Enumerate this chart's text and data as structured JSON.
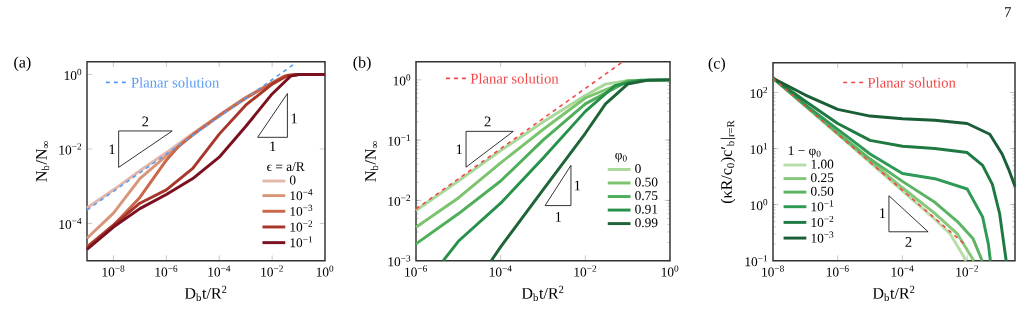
{
  "chart_data": [
    {
      "type": "line",
      "title": "(a)",
      "xlabel": "D$_{b}$t/R$^{2}$",
      "ylabel": "N$_{b}$/N$_{∞}$",
      "legend_title": "ϵ = a/R",
      "log": "xy",
      "legend": "bottom right",
      "marker": "none",
      "xlim": [
        1e-09,
        1
      ],
      "ylim": [
        1e-05,
        2.2
      ],
      "xticks": [
        {
          "value": 1e-08,
          "label": "10$^{−8}$"
        },
        {
          "value": 1e-06,
          "label": "10$^{−6}$"
        },
        {
          "value": 0.0001,
          "label": "10$^{−4}$"
        },
        {
          "value": 0.01,
          "label": "10$^{−2}$"
        },
        {
          "value": 1,
          "label": "10$^{0}$"
        }
      ],
      "yticks": [
        {
          "value": 0.0001,
          "label": "10$^{−4}$"
        },
        {
          "value": 0.01,
          "label": "10$^{−2}$"
        },
        {
          "value": 1,
          "label": "10$^{0}$"
        }
      ],
      "annotations": [
        "2",
        "1",
        "1",
        "1"
      ],
      "series": [
        {
          "name": "0",
          "color": "#e3b8ab",
          "x": [
            1e-09,
            1e-08,
            1e-07,
            1e-06,
            1e-05,
            0.0001,
            0.001,
            0.01,
            0.03,
            0.1
          ],
          "values": [
            0.00026,
            0.0008,
            0.0026,
            0.008,
            0.026,
            0.08,
            0.24,
            0.6,
            0.9,
            1.0
          ]
        },
        {
          "name": "10$^{−4}$",
          "color": "#d9957a",
          "x": [
            1e-09,
            1e-08,
            1e-07,
            1e-06,
            1e-05,
            0.0001,
            0.001,
            0.01,
            0.03,
            0.1
          ],
          "values": [
            4e-05,
            0.00019,
            0.0016,
            0.0065,
            0.024,
            0.08,
            0.24,
            0.6,
            0.9,
            1.0
          ]
        },
        {
          "name": "10$^{−3}$",
          "color": "#c9684a",
          "x": [
            1e-09,
            1e-08,
            1e-07,
            1e-06,
            3e-06,
            1e-05,
            0.0001,
            0.001,
            0.01,
            0.03,
            0.1,
            1
          ],
          "values": [
            2.4e-05,
            9e-05,
            0.0005,
            0.005,
            0.012,
            0.024,
            0.078,
            0.23,
            0.6,
            0.9,
            1.0,
            1.0
          ]
        },
        {
          "name": "10$^{−2}$",
          "color": "#a8362a",
          "x": [
            1e-09,
            1e-08,
            1e-07,
            1e-06,
            1e-05,
            0.0001,
            0.001,
            0.01,
            0.04,
            0.1,
            1
          ],
          "values": [
            2.2e-05,
            9e-05,
            0.00035,
            0.0008,
            0.003,
            0.025,
            0.15,
            0.55,
            0.95,
            1.0,
            1.0
          ]
        },
        {
          "name": "10$^{−1}$",
          "color": "#7a1020",
          "x": [
            1e-09,
            1e-08,
            1e-07,
            1e-06,
            1e-05,
            0.0001,
            0.001,
            0.01,
            0.05,
            0.1,
            1
          ],
          "values": [
            2e-05,
            8e-05,
            0.00025,
            0.0006,
            0.0016,
            0.006,
            0.04,
            0.3,
            0.9,
            1.0,
            1.0
          ]
        },
        {
          "name": "Planar solution",
          "color": "#5a9cf5",
          "line_style": "dashed",
          "x": [
            1e-09,
            1e-05,
            0.07
          ],
          "values": [
            0.00023,
            0.023,
            1.92
          ]
        }
      ]
    },
    {
      "type": "line",
      "title": "(b)",
      "xlabel": "D$_{b}$t/R$^{2}$",
      "ylabel": "N$_{b}$/N$_{∞}$",
      "legend_title": "φ$_{0}$",
      "log": "xy",
      "legend": "right",
      "marker": "none",
      "xlim": [
        1e-06,
        1
      ],
      "ylim": [
        0.001,
        2
      ],
      "xticks": [
        {
          "value": 1e-06,
          "label": "10$^{−6}$"
        },
        {
          "value": 0.0001,
          "label": "10$^{−4}$"
        },
        {
          "value": 0.01,
          "label": "10$^{−2}$"
        },
        {
          "value": 1,
          "label": "10$^{0}$"
        }
      ],
      "yticks": [
        {
          "value": 0.001,
          "label": "10$^{−3}$"
        },
        {
          "value": 0.01,
          "label": "10$^{−2}$"
        },
        {
          "value": 0.1,
          "label": "10$^{−1}$"
        },
        {
          "value": 1,
          "label": "10$^{0}$"
        }
      ],
      "annotations": [
        "2",
        "1",
        "1",
        "1"
      ],
      "series": [
        {
          "name": "0",
          "color": "#a8d89a",
          "x": [
            1e-06,
            1e-05,
            0.0001,
            0.001,
            0.01,
            0.03,
            0.1
          ],
          "values": [
            0.0068,
            0.021,
            0.067,
            0.2,
            0.55,
            0.85,
            0.97
          ]
        },
        {
          "name": "0.50",
          "color": "#7cc36e",
          "x": [
            1e-06,
            1e-05,
            0.0001,
            0.001,
            0.01,
            0.1,
            1
          ],
          "values": [
            0.0036,
            0.011,
            0.042,
            0.15,
            0.5,
            0.97,
            1.0
          ]
        },
        {
          "name": "0.75",
          "color": "#4fae5a",
          "x": [
            1e-06,
            1e-05,
            0.0001,
            0.001,
            0.01,
            0.1,
            1
          ],
          "values": [
            0.0019,
            0.006,
            0.021,
            0.1,
            0.4,
            0.95,
            1.0
          ]
        },
        {
          "name": "0.91",
          "color": "#27914a",
          "x": [
            4.4e-06,
            1e-05,
            0.0001,
            0.001,
            0.01,
            0.05,
            0.2,
            1
          ],
          "values": [
            0.001,
            0.0021,
            0.009,
            0.05,
            0.3,
            0.8,
            0.99,
            1.0
          ]
        },
        {
          "name": "0.99",
          "color": "#1d6438",
          "x": [
            6e-05,
            0.0001,
            0.001,
            0.01,
            0.03,
            0.1,
            0.3,
            1
          ],
          "values": [
            0.001,
            0.0017,
            0.015,
            0.13,
            0.4,
            0.85,
            0.99,
            1.0
          ]
        },
        {
          "name": "Planar solution",
          "color": "#f04848",
          "line_style": "dashed",
          "x": [
            1e-06,
            0.001,
            0.075
          ],
          "values": [
            0.0072,
            0.228,
            1.97
          ]
        }
      ]
    },
    {
      "type": "line",
      "title": "(c)",
      "xlabel": "D$_{b}$t/R$^{2}$",
      "ylabel": "(κR/c$_{0}$)c′$_{b}$|$_{r=R}$",
      "legend_title": "1 − φ$_{0}$",
      "log": "xy",
      "legend": "left",
      "marker": "none",
      "xlim": [
        1e-08,
        0.3
      ],
      "ylim": [
        0.1,
        340
      ],
      "xticks": [
        {
          "value": 1e-08,
          "label": "10$^{−8}$"
        },
        {
          "value": 1e-06,
          "label": "10$^{−6}$"
        },
        {
          "value": 0.0001,
          "label": "10$^{−4}$"
        },
        {
          "value": 0.01,
          "label": "10$^{−2}$"
        }
      ],
      "yticks": [
        {
          "value": 0.1,
          "label": "10$^{−1}$"
        },
        {
          "value": 1,
          "label": "10$^{0}$"
        },
        {
          "value": 10,
          "label": "10$^{1}$"
        },
        {
          "value": 100,
          "label": "10$^{2}$"
        }
      ],
      "annotations": [
        "1",
        "2",
        "7"
      ],
      "series": [
        {
          "name": "1.00",
          "color": "#b5dea8",
          "x": [
            1e-08,
            1e-06,
            0.0001,
            0.001,
            0.003,
            0.0093
          ],
          "values": [
            180,
            18,
            1.75,
            0.55,
            0.3,
            0.1
          ]
        },
        {
          "name": "0.25",
          "color": "#86c87a",
          "x": [
            1e-08,
            1e-06,
            1e-05,
            0.0001,
            0.001,
            0.005,
            0.016
          ],
          "values": [
            180,
            18.5,
            6,
            2.0,
            0.7,
            0.3,
            0.1
          ]
        },
        {
          "name": "0.50",
          "color": "#5cb363",
          "x": [
            1e-08,
            1e-06,
            1e-05,
            0.0001,
            0.001,
            0.005,
            0.015,
            0.029
          ],
          "values": [
            180,
            19,
            6.5,
            2.6,
            1.1,
            0.5,
            0.25,
            0.1
          ]
        },
        {
          "name": "10$^{−1}$",
          "color": "#2e9a55",
          "x": [
            1e-08,
            1e-07,
            1e-06,
            1e-05,
            0.0001,
            0.001,
            0.01,
            0.03,
            0.045,
            0.052
          ],
          "values": [
            180,
            60,
            22,
            8,
            3.6,
            2.9,
            1.9,
            0.6,
            0.2,
            0.1
          ]
        },
        {
          "name": "10$^{−2}$",
          "color": "#1f7a42",
          "x": [
            1e-08,
            1e-07,
            1e-06,
            1e-05,
            0.0001,
            0.001,
            0.01,
            0.03,
            0.06,
            0.1,
            0.16
          ],
          "values": [
            180,
            70,
            28,
            14,
            11,
            10,
            8.5,
            5,
            2.3,
            0.7,
            0.1
          ]
        },
        {
          "name": "10$^{−3}$",
          "color": "#1a5e36",
          "x": [
            1e-08,
            1e-07,
            1e-06,
            1e-05,
            0.0001,
            0.001,
            0.01,
            0.05,
            0.12,
            0.2,
            0.3
          ],
          "values": [
            180,
            90,
            50,
            38,
            34,
            32,
            28,
            18,
            8,
            4,
            2.1
          ]
        },
        {
          "name": "Planar solution",
          "color": "#f04848",
          "line_style": "dashed",
          "x": [
            1e-08,
            1e-05,
            0.009
          ],
          "values": [
            180,
            5.7,
            0.19
          ]
        }
      ]
    }
  ]
}
